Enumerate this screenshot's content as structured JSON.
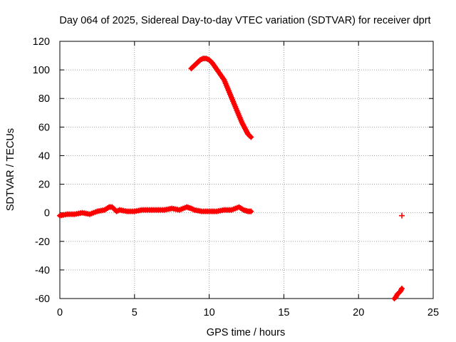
{
  "chart_data": {
    "type": "scatter",
    "title": "Day 064 of 2025, Sidereal Day-to-day VTEC variation (SDTVAR) for receiver dprt",
    "xlabel": "GPS time / hours",
    "ylabel": "SDTVAR / TECUs",
    "xlim": [
      0,
      25
    ],
    "ylim": [
      -60,
      120
    ],
    "xticks": [
      "0",
      "5",
      "10",
      "15",
      "20",
      "25"
    ],
    "yticks": [
      "-60",
      "-40",
      "-20",
      "0",
      "20",
      "40",
      "60",
      "80",
      "100",
      "120"
    ],
    "grid": true,
    "marker": "+",
    "color": "#ff0000",
    "segments": [
      {
        "x": [
          0.0,
          0.5,
          1.0,
          1.5,
          2.0,
          2.5,
          3.0,
          3.3,
          3.5,
          3.8,
          4.0,
          4.5,
          5.0,
          5.5,
          6.0,
          6.5,
          7.0,
          7.5,
          8.0,
          8.5,
          8.8,
          9.0,
          9.5,
          10.0,
          10.5,
          11.0,
          11.5,
          12.0,
          12.3,
          12.6,
          12.8
        ],
        "y": [
          -2,
          -1,
          -1,
          0,
          -1,
          1,
          2,
          4,
          4,
          1,
          2,
          1,
          1,
          2,
          2,
          2,
          2,
          3,
          2,
          4,
          3,
          2,
          1,
          1,
          1,
          2,
          2,
          4,
          2,
          1,
          1
        ]
      },
      {
        "x": [
          8.8,
          9.0,
          9.2,
          9.4,
          9.6,
          9.8,
          10.0,
          10.2,
          10.4,
          10.6,
          10.8,
          11.0,
          11.2,
          11.4,
          11.6,
          11.8,
          12.0,
          12.2,
          12.4,
          12.6,
          12.8
        ],
        "y": [
          101,
          103,
          105,
          107,
          108,
          108,
          107,
          105,
          102,
          99,
          96,
          93,
          88,
          83,
          78,
          73,
          68,
          63,
          59,
          55,
          53
        ]
      },
      {
        "x": [
          22.4,
          22.5,
          22.6,
          22.7,
          22.8,
          22.9
        ],
        "y": [
          -60,
          -59,
          -57,
          -56,
          -55,
          -53
        ]
      }
    ],
    "isolated_points": [
      {
        "x": 22.9,
        "y": -2
      }
    ]
  }
}
